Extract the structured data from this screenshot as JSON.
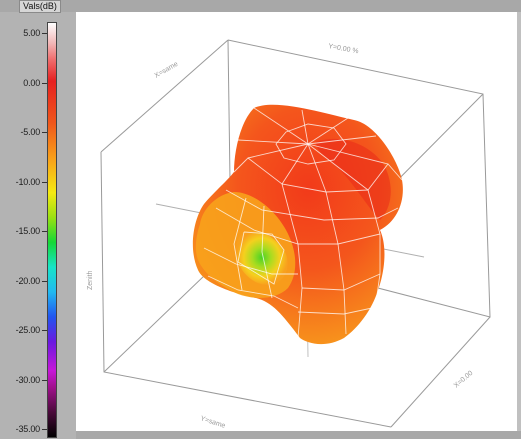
{
  "legend": {
    "title": "Vals(dB)",
    "ticks": [
      "5.00",
      "0.00",
      "-5.00",
      "-10.00",
      "-15.00",
      "-20.00",
      "-25.00",
      "-30.00",
      "-35.00"
    ]
  },
  "axes": {
    "z_label": "Zenith",
    "top_label": "Y=0.00 %",
    "left_label": "X=same",
    "bottom_label": "Y=same",
    "right_label": "X=0.00"
  }
}
